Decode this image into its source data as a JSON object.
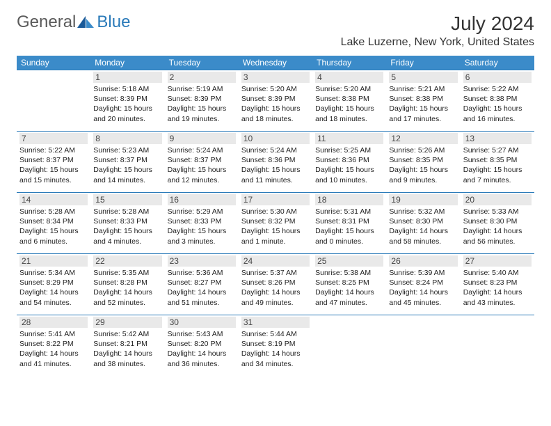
{
  "colors": {
    "header_bg": "#3b8bc9",
    "header_text": "#ffffff",
    "row_divider": "#2a7ab9",
    "daynum_bg": "#e9e9e9",
    "text": "#1a1a1a",
    "logo_gray": "#5a5a5a",
    "logo_blue": "#2a7ab9"
  },
  "logo": {
    "part1": "General",
    "part2": "Blue"
  },
  "title": "July 2024",
  "location": "Lake Luzerne, New York, United States",
  "weekdays": [
    "Sunday",
    "Monday",
    "Tuesday",
    "Wednesday",
    "Thursday",
    "Friday",
    "Saturday"
  ],
  "weeks": [
    [
      null,
      {
        "n": "1",
        "sr": "5:18 AM",
        "ss": "8:39 PM",
        "dl": "15 hours and 20 minutes."
      },
      {
        "n": "2",
        "sr": "5:19 AM",
        "ss": "8:39 PM",
        "dl": "15 hours and 19 minutes."
      },
      {
        "n": "3",
        "sr": "5:20 AM",
        "ss": "8:39 PM",
        "dl": "15 hours and 18 minutes."
      },
      {
        "n": "4",
        "sr": "5:20 AM",
        "ss": "8:38 PM",
        "dl": "15 hours and 18 minutes."
      },
      {
        "n": "5",
        "sr": "5:21 AM",
        "ss": "8:38 PM",
        "dl": "15 hours and 17 minutes."
      },
      {
        "n": "6",
        "sr": "5:22 AM",
        "ss": "8:38 PM",
        "dl": "15 hours and 16 minutes."
      }
    ],
    [
      {
        "n": "7",
        "sr": "5:22 AM",
        "ss": "8:37 PM",
        "dl": "15 hours and 15 minutes."
      },
      {
        "n": "8",
        "sr": "5:23 AM",
        "ss": "8:37 PM",
        "dl": "15 hours and 14 minutes."
      },
      {
        "n": "9",
        "sr": "5:24 AM",
        "ss": "8:37 PM",
        "dl": "15 hours and 12 minutes."
      },
      {
        "n": "10",
        "sr": "5:24 AM",
        "ss": "8:36 PM",
        "dl": "15 hours and 11 minutes."
      },
      {
        "n": "11",
        "sr": "5:25 AM",
        "ss": "8:36 PM",
        "dl": "15 hours and 10 minutes."
      },
      {
        "n": "12",
        "sr": "5:26 AM",
        "ss": "8:35 PM",
        "dl": "15 hours and 9 minutes."
      },
      {
        "n": "13",
        "sr": "5:27 AM",
        "ss": "8:35 PM",
        "dl": "15 hours and 7 minutes."
      }
    ],
    [
      {
        "n": "14",
        "sr": "5:28 AM",
        "ss": "8:34 PM",
        "dl": "15 hours and 6 minutes."
      },
      {
        "n": "15",
        "sr": "5:28 AM",
        "ss": "8:33 PM",
        "dl": "15 hours and 4 minutes."
      },
      {
        "n": "16",
        "sr": "5:29 AM",
        "ss": "8:33 PM",
        "dl": "15 hours and 3 minutes."
      },
      {
        "n": "17",
        "sr": "5:30 AM",
        "ss": "8:32 PM",
        "dl": "15 hours and 1 minute."
      },
      {
        "n": "18",
        "sr": "5:31 AM",
        "ss": "8:31 PM",
        "dl": "15 hours and 0 minutes."
      },
      {
        "n": "19",
        "sr": "5:32 AM",
        "ss": "8:30 PM",
        "dl": "14 hours and 58 minutes."
      },
      {
        "n": "20",
        "sr": "5:33 AM",
        "ss": "8:30 PM",
        "dl": "14 hours and 56 minutes."
      }
    ],
    [
      {
        "n": "21",
        "sr": "5:34 AM",
        "ss": "8:29 PM",
        "dl": "14 hours and 54 minutes."
      },
      {
        "n": "22",
        "sr": "5:35 AM",
        "ss": "8:28 PM",
        "dl": "14 hours and 52 minutes."
      },
      {
        "n": "23",
        "sr": "5:36 AM",
        "ss": "8:27 PM",
        "dl": "14 hours and 51 minutes."
      },
      {
        "n": "24",
        "sr": "5:37 AM",
        "ss": "8:26 PM",
        "dl": "14 hours and 49 minutes."
      },
      {
        "n": "25",
        "sr": "5:38 AM",
        "ss": "8:25 PM",
        "dl": "14 hours and 47 minutes."
      },
      {
        "n": "26",
        "sr": "5:39 AM",
        "ss": "8:24 PM",
        "dl": "14 hours and 45 minutes."
      },
      {
        "n": "27",
        "sr": "5:40 AM",
        "ss": "8:23 PM",
        "dl": "14 hours and 43 minutes."
      }
    ],
    [
      {
        "n": "28",
        "sr": "5:41 AM",
        "ss": "8:22 PM",
        "dl": "14 hours and 41 minutes."
      },
      {
        "n": "29",
        "sr": "5:42 AM",
        "ss": "8:21 PM",
        "dl": "14 hours and 38 minutes."
      },
      {
        "n": "30",
        "sr": "5:43 AM",
        "ss": "8:20 PM",
        "dl": "14 hours and 36 minutes."
      },
      {
        "n": "31",
        "sr": "5:44 AM",
        "ss": "8:19 PM",
        "dl": "14 hours and 34 minutes."
      },
      null,
      null,
      null
    ]
  ],
  "labels": {
    "sunrise": "Sunrise: ",
    "sunset": "Sunset: ",
    "daylight": "Daylight: "
  }
}
